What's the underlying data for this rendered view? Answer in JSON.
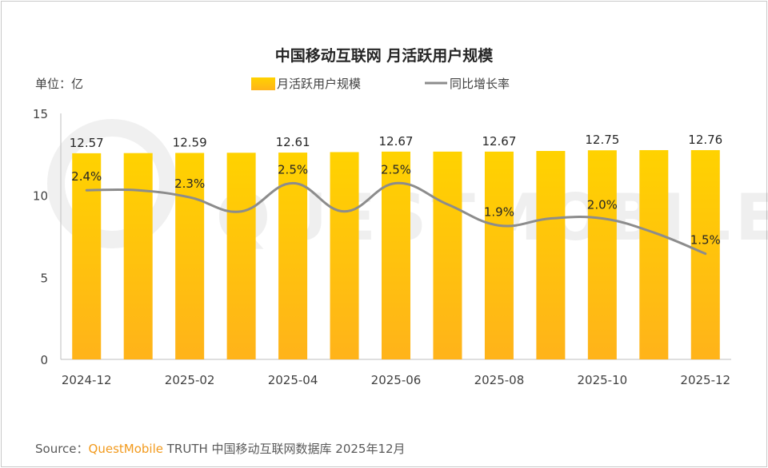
{
  "chart_data": {
    "type": "bar",
    "title": "中国移动互联网 月活跃用户规模",
    "unit_label": "单位：亿",
    "legend": {
      "bar": "月活跃用户规模",
      "line": "同比增长率"
    },
    "ylim": [
      0,
      15
    ],
    "yticks": [
      0,
      5,
      10,
      15
    ],
    "categories": [
      "2024-12",
      "2025-01",
      "2025-02",
      "2025-03",
      "2025-04",
      "2025-05",
      "2025-06",
      "2025-07",
      "2025-08",
      "2025-09",
      "2025-10",
      "2025-11",
      "2025-12"
    ],
    "xtick_labels": [
      "2024-12",
      "",
      "2025-02",
      "",
      "2025-04",
      "",
      "2025-06",
      "",
      "2025-08",
      "",
      "2025-10",
      "",
      "2025-12"
    ],
    "series": [
      {
        "name": "月活跃用户规模",
        "type": "bar",
        "values": [
          12.57,
          12.58,
          12.59,
          12.6,
          12.61,
          12.64,
          12.67,
          12.67,
          12.67,
          12.71,
          12.75,
          12.76,
          12.76
        ],
        "labels": [
          "12.57",
          "",
          "12.59",
          "",
          "12.61",
          "",
          "12.67",
          "",
          "12.67",
          "",
          "12.75",
          "",
          "12.76"
        ]
      },
      {
        "name": "同比增长率",
        "type": "line",
        "values_percent": [
          2.4,
          2.4,
          2.3,
          2.1,
          2.5,
          2.1,
          2.5,
          2.2,
          1.9,
          2.0,
          2.0,
          1.8,
          1.5
        ],
        "labels": [
          "2.4%",
          "",
          "2.3%",
          "",
          "2.5%",
          "",
          "2.5%",
          "",
          "1.9%",
          "",
          "2.0%",
          "",
          "1.5%"
        ]
      }
    ],
    "colors": {
      "bar_top": "#ffd200",
      "bar_bottom": "#ffb31a",
      "line": "#8c8c8c",
      "axis": "#bfbfbf"
    }
  },
  "footer": {
    "source_prefix": "Source：",
    "brand": "QuestMobile",
    "source_text": " TRUTH 中国移动互联网数据库 2025年12月"
  },
  "watermark": "QUESTMOBILE"
}
